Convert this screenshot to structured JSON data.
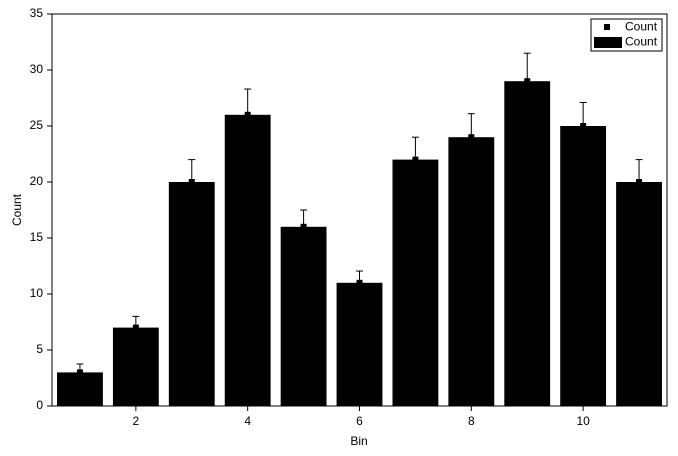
{
  "chart_data": {
    "type": "bar",
    "x_label": "Bin",
    "y_label": "Count",
    "x": [
      1,
      2,
      3,
      4,
      5,
      6,
      7,
      8,
      9,
      10,
      11
    ],
    "series": [
      {
        "name": "Count",
        "color": "#000000",
        "values": [
          3,
          7,
          20,
          26,
          16,
          11,
          22,
          24,
          29,
          25,
          20
        ],
        "errors": [
          0.75,
          1,
          2,
          2.3,
          1.5,
          1.05,
          2,
          2.1,
          2.5,
          2.1,
          2
        ]
      }
    ],
    "xlim": [
      0.5,
      11.5
    ],
    "xticks": [
      2,
      4,
      6,
      8,
      10
    ],
    "ylim": [
      0,
      35
    ],
    "yticks": [
      0,
      5,
      10,
      15,
      20,
      25,
      30,
      35
    ],
    "legend": "upper right",
    "grid": false
  }
}
